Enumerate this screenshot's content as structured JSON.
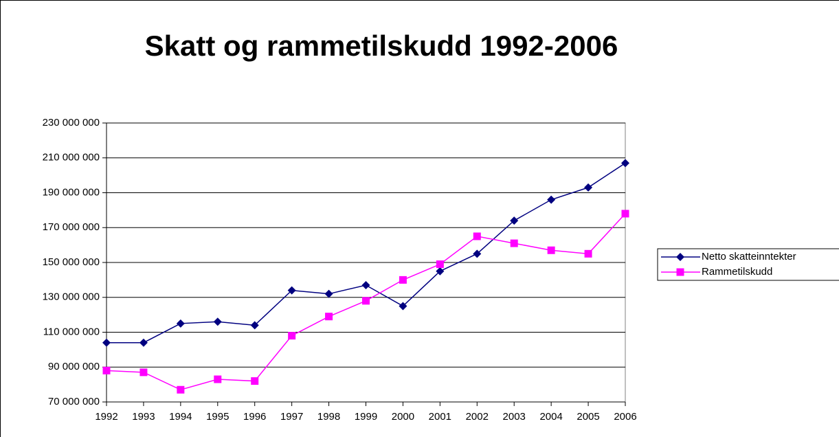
{
  "chart_data": {
    "type": "line",
    "title": "Skatt og rammetilskudd 1992-2006",
    "categories": [
      "1992",
      "1993",
      "1994",
      "1995",
      "1996",
      "1997",
      "1998",
      "1999",
      "2000",
      "2001",
      "2002",
      "2003",
      "2004",
      "2005",
      "2006"
    ],
    "series": [
      {
        "name": "Netto skatteinntekter",
        "color": "#000080",
        "marker": "diamond",
        "values": [
          104000000,
          104000000,
          115000000,
          116000000,
          114000000,
          134000000,
          132000000,
          137000000,
          125000000,
          145000000,
          155000000,
          174000000,
          186000000,
          193000000,
          207000000
        ]
      },
      {
        "name": "Rammetilskudd",
        "color": "#ff00ff",
        "marker": "square",
        "values": [
          88000000,
          87000000,
          77000000,
          83000000,
          82000000,
          108000000,
          119000000,
          128000000,
          140000000,
          149000000,
          165000000,
          161000000,
          157000000,
          155000000,
          178000000
        ]
      }
    ],
    "ylim": [
      70000000,
      230000000
    ],
    "yticks": [
      {
        "value": 70000000,
        "label": "70 000 000"
      },
      {
        "value": 90000000,
        "label": "90 000 000"
      },
      {
        "value": 110000000,
        "label": "110 000 000"
      },
      {
        "value": 130000000,
        "label": "130 000 000"
      },
      {
        "value": 150000000,
        "label": "150 000 000"
      },
      {
        "value": 170000000,
        "label": "170 000 000"
      },
      {
        "value": 190000000,
        "label": "190 000 000"
      },
      {
        "value": 210000000,
        "label": "210 000 000"
      },
      {
        "value": 230000000,
        "label": "230 000 000"
      }
    ],
    "grid": true,
    "legend": "right"
  }
}
